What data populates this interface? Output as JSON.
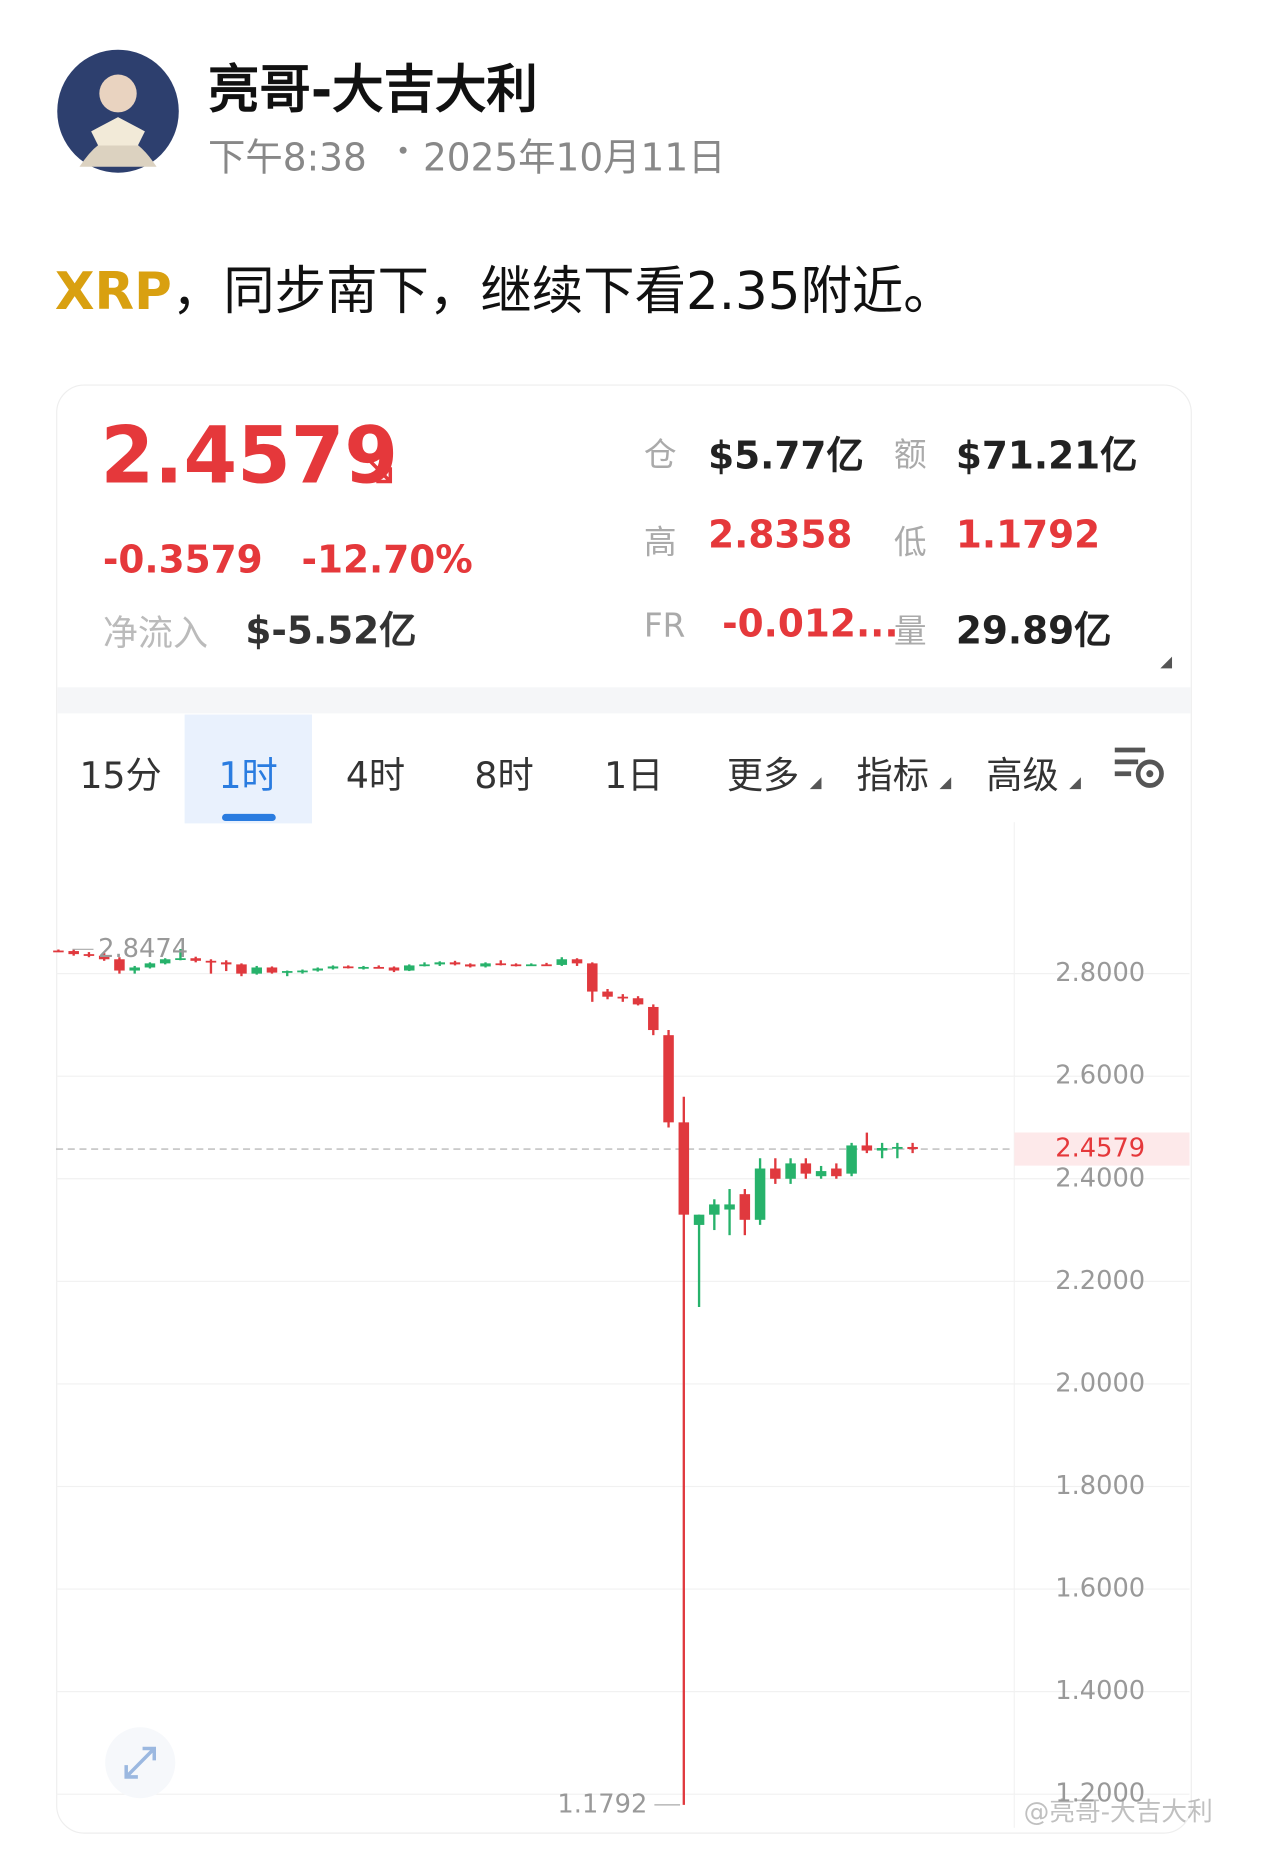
{
  "header": {
    "name": "亮哥-大吉大利",
    "time": "下午8:38",
    "date": "2025年10月11日"
  },
  "post": {
    "ticker": "XRP",
    "text": "，同步南下，继续下看2.35附近。"
  },
  "quote": {
    "price": "2.4579",
    "change": "-0.3579",
    "change_pct": "-12.70%",
    "net_inflow_label": "净流入",
    "net_inflow": "$-5.52亿",
    "stats": [
      {
        "label": "仓",
        "value": "$5.77亿"
      },
      {
        "label": "额",
        "value": "$71.21亿"
      },
      {
        "label": "高",
        "value": "2.8358"
      },
      {
        "label": "低",
        "value": "1.1792"
      },
      {
        "label": "FR",
        "value": "-0.012..."
      },
      {
        "label": "量",
        "value": "29.89亿"
      }
    ]
  },
  "tabs": {
    "items": [
      "15分",
      "1时",
      "4时",
      "8时",
      "1日",
      "更多",
      "指标",
      "高级"
    ],
    "active": 1
  },
  "watermark": "@亮哥-大吉大利",
  "chart_data": {
    "type": "candlestick",
    "up_color": "#27b26b",
    "down_color": "#e0393e",
    "open": [
      2.845,
      2.844,
      2.838,
      2.835,
      2.828,
      2.806,
      2.812,
      2.82,
      2.828,
      2.83,
      2.825,
      2.822,
      2.818,
      2.8,
      2.812,
      2.802,
      2.805,
      2.806,
      2.81,
      2.814,
      2.812,
      2.813,
      2.812,
      2.806,
      2.816,
      2.818,
      2.822,
      2.818,
      2.814,
      2.82,
      2.818,
      2.817,
      2.818,
      2.817,
      2.828,
      2.82,
      2.765,
      2.755,
      2.752,
      2.735,
      2.68,
      2.51,
      2.31,
      2.33,
      2.34,
      2.37,
      2.32,
      2.42,
      2.4,
      2.43,
      2.405,
      2.42,
      2.41,
      2.465,
      2.455,
      2.46,
      2.462
    ],
    "high": [
      2.847,
      2.847,
      2.842,
      2.84,
      2.832,
      2.815,
      2.822,
      2.83,
      2.848,
      2.833,
      2.828,
      2.826,
      2.82,
      2.815,
      2.814,
      2.806,
      2.808,
      2.812,
      2.816,
      2.816,
      2.815,
      2.816,
      2.814,
      2.818,
      2.822,
      2.824,
      2.825,
      2.82,
      2.822,
      2.826,
      2.82,
      2.82,
      2.821,
      2.832,
      2.83,
      2.822,
      2.77,
      2.76,
      2.756,
      2.74,
      2.69,
      2.56,
      2.33,
      2.36,
      2.38,
      2.38,
      2.44,
      2.44,
      2.44,
      2.44,
      2.425,
      2.43,
      2.47,
      2.49,
      2.47,
      2.47,
      2.47
    ],
    "low": [
      2.842,
      2.835,
      2.832,
      2.825,
      2.8,
      2.8,
      2.81,
      2.818,
      2.826,
      2.822,
      2.8,
      2.805,
      2.795,
      2.798,
      2.8,
      2.795,
      2.8,
      2.804,
      2.808,
      2.81,
      2.808,
      2.81,
      2.803,
      2.805,
      2.814,
      2.815,
      2.816,
      2.812,
      2.812,
      2.816,
      2.814,
      2.815,
      2.815,
      2.815,
      2.815,
      2.745,
      2.75,
      2.745,
      2.738,
      2.68,
      2.5,
      1.1792,
      2.15,
      2.3,
      2.29,
      2.29,
      2.31,
      2.39,
      2.39,
      2.4,
      2.4,
      2.4,
      2.405,
      2.45,
      2.44,
      2.44,
      2.45
    ],
    "close": [
      2.844,
      2.838,
      2.835,
      2.828,
      2.806,
      2.812,
      2.82,
      2.828,
      2.83,
      2.825,
      2.822,
      2.818,
      2.8,
      2.812,
      2.802,
      2.805,
      2.806,
      2.81,
      2.814,
      2.812,
      2.813,
      2.812,
      2.806,
      2.816,
      2.818,
      2.822,
      2.818,
      2.814,
      2.82,
      2.818,
      2.817,
      2.818,
      2.817,
      2.828,
      2.82,
      2.765,
      2.755,
      2.752,
      2.74,
      2.69,
      2.51,
      2.33,
      2.33,
      2.35,
      2.35,
      2.32,
      2.42,
      2.4,
      2.43,
      2.41,
      2.415,
      2.405,
      2.465,
      2.455,
      2.46,
      2.462,
      2.4579
    ],
    "ylim": [
      1.1345,
      3.0837
    ],
    "yticks": [
      {
        "value": 1.2,
        "label": "1.2000"
      },
      {
        "value": 1.4,
        "label": "1.4000"
      },
      {
        "value": 1.6,
        "label": "1.6000"
      },
      {
        "value": 1.8,
        "label": "1.8000"
      },
      {
        "value": 2.0,
        "label": "2.0000"
      },
      {
        "value": 2.2,
        "label": "2.2000"
      },
      {
        "value": 2.4,
        "label": "2.4000"
      },
      {
        "value": 2.6,
        "label": "2.6000"
      },
      {
        "value": 2.8,
        "label": "2.8000"
      }
    ],
    "price_line": 2.4579,
    "max_label": 2.8474,
    "min_label": 1.1792,
    "grid": true
  }
}
